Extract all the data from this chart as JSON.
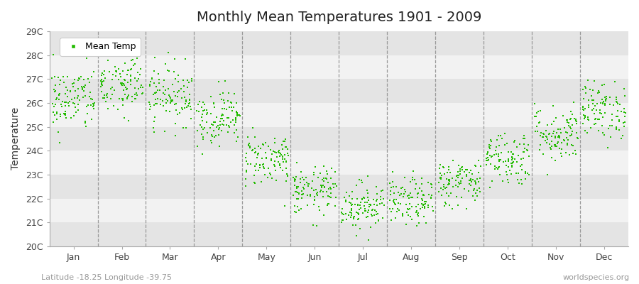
{
  "title": "Monthly Mean Temperatures 1901 - 2009",
  "ylabel": "Temperature",
  "xlabel_bottom_left": "Latitude -18.25 Longitude -39.75",
  "xlabel_bottom_right": "worldspecies.org",
  "legend_label": "Mean Temp",
  "dot_color": "#22BB00",
  "bg_color": "#EBEBEB",
  "band_light": "#F2F2F2",
  "band_dark": "#E4E4E4",
  "vline_color": "#999999",
  "ylim": [
    20,
    29
  ],
  "yticks": [
    20,
    21,
    22,
    23,
    24,
    25,
    26,
    27,
    28,
    29
  ],
  "ytick_labels": [
    "20C",
    "21C",
    "22C",
    "23C",
    "24C",
    "25C",
    "26C",
    "27C",
    "28C",
    "29C"
  ],
  "months": [
    "Jan",
    "Feb",
    "Mar",
    "Apr",
    "May",
    "Jun",
    "Jul",
    "Aug",
    "Sep",
    "Oct",
    "Nov",
    "Dec"
  ],
  "month_means": [
    26.15,
    26.75,
    26.35,
    25.4,
    23.65,
    22.3,
    21.7,
    21.85,
    22.7,
    23.7,
    24.7,
    25.7
  ],
  "month_stds": [
    0.68,
    0.7,
    0.63,
    0.58,
    0.56,
    0.5,
    0.5,
    0.5,
    0.5,
    0.58,
    0.6,
    0.6
  ],
  "n_years": 109,
  "seed": 42,
  "marker_size": 4,
  "title_fontsize": 14,
  "tick_fontsize": 9,
  "ylabel_fontsize": 10
}
